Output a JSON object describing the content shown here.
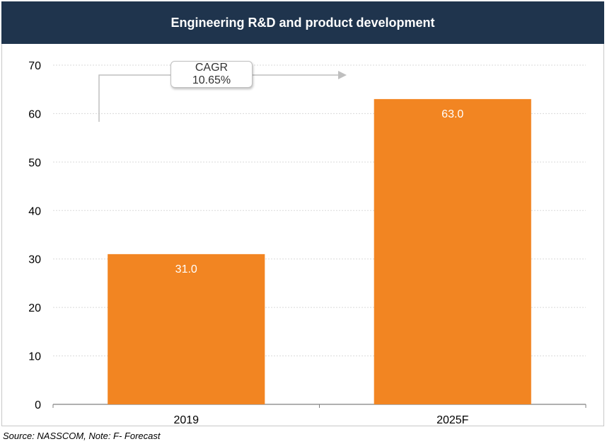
{
  "chart_data": {
    "type": "bar",
    "title": "Engineering R&D and product development",
    "categories": [
      "2019",
      "2025F"
    ],
    "values": [
      31.0,
      63.0
    ],
    "data_labels": [
      "31.0",
      "63.0"
    ],
    "ylim": [
      0,
      70
    ],
    "yticks": [
      0,
      10,
      20,
      30,
      40,
      50,
      60,
      70
    ],
    "xlabel": "",
    "ylabel": "",
    "grid": true,
    "bar_color": "#f28522",
    "annotation": {
      "label": "CAGR",
      "value": "10.65%"
    }
  },
  "source_note": "Source: NASSCOM, Note: F- Forecast",
  "colors": {
    "title_bar": "#1f344d",
    "bar": "#f28522",
    "grid": "#d9d9d9",
    "axis": "#808080"
  }
}
